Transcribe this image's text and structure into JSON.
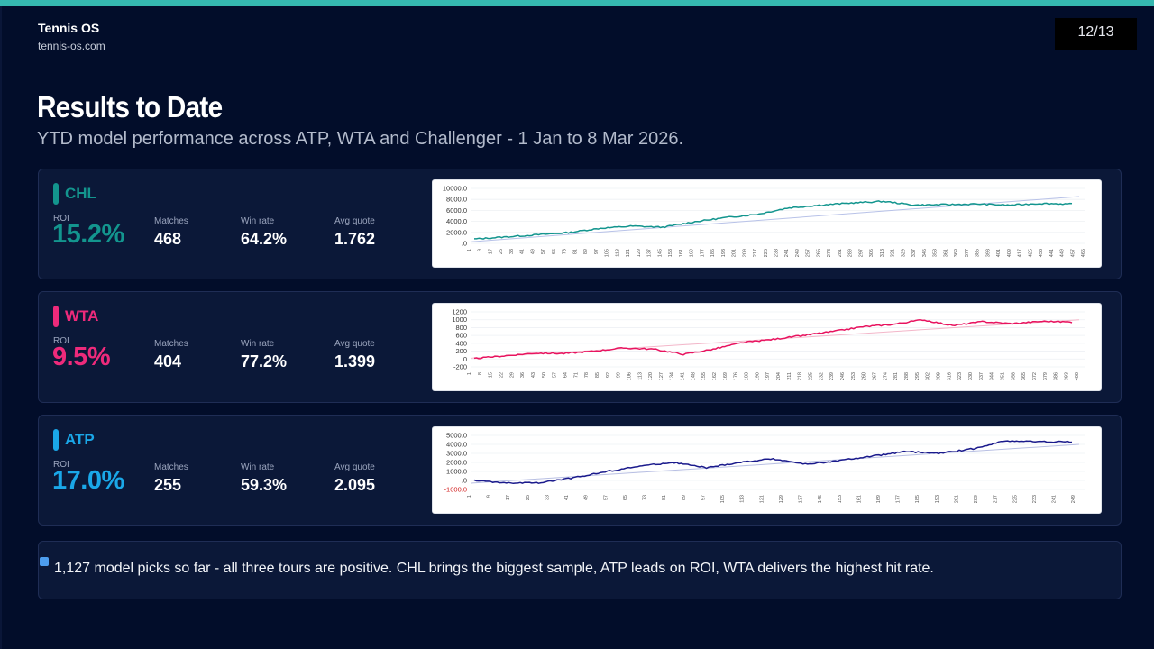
{
  "brand": {
    "name": "Tennis OS",
    "url": "tennis-os.com"
  },
  "page_indicator": "12/13",
  "title": "Results to Date",
  "subtitle": "YTD model performance across ATP, WTA and Challenger - 1 Jan to 8 Mar 2026.",
  "labels": {
    "roi": "ROI",
    "matches": "Matches",
    "win_rate": "Win rate",
    "avg_quote": "Avg quote"
  },
  "tours": [
    {
      "name": "CHL",
      "color": "#13958e",
      "roi": "15.2%",
      "matches": "468",
      "win_rate": "64.2%",
      "avg_quote": "1.762"
    },
    {
      "name": "WTA",
      "color": "#ee2a7b",
      "roi": "9.5%",
      "matches": "404",
      "win_rate": "77.2%",
      "avg_quote": "1.399"
    },
    {
      "name": "ATP",
      "color": "#1aa7e8",
      "roi": "17.0%",
      "matches": "255",
      "win_rate": "59.3%",
      "avg_quote": "2.095"
    }
  ],
  "note": "1,127 model picks so far - all three tours are positive. CHL brings the biggest sample, ATP leads on ROI, WTA delivers the highest hit rate.",
  "chart_data": [
    {
      "type": "line",
      "title": "",
      "series": [
        {
          "values": [
            600,
            1000,
            1400,
            1800,
            2600,
            3000,
            2800,
            3800,
            4600,
            5200,
            6400,
            6900,
            7300,
            7600,
            6900,
            7000,
            7100,
            6900,
            7200,
            7100
          ]
        }
      ],
      "trendline": [
        100,
        8500
      ],
      "ylim": [
        -200,
        10000
      ],
      "yticks": [
        ".0",
        "2000.0",
        "4000.0",
        "6000.0",
        "8000.0",
        "10000.0"
      ],
      "xlim": [
        1,
        465
      ],
      "xticks": [
        "1",
        "9",
        "17",
        "25",
        "33",
        "41",
        "49",
        "57",
        "65",
        "73",
        "81",
        "89",
        "97",
        "105",
        "113",
        "121",
        "129",
        "137",
        "145",
        "153",
        "161",
        "169",
        "177",
        "185",
        "193",
        "201",
        "209",
        "217",
        "225",
        "233",
        "241",
        "249",
        "257",
        "265",
        "273",
        "281",
        "289",
        "297",
        "305",
        "313",
        "321",
        "329",
        "337",
        "345",
        "353",
        "361",
        "369",
        "377",
        "385",
        "393",
        "401",
        "409",
        "417",
        "425",
        "433",
        "441",
        "449",
        "457",
        "465"
      ],
      "color": "#13958e",
      "trend_color": "#b8c2e8"
    },
    {
      "type": "line",
      "title": "",
      "series": [
        {
          "values": [
            10,
            80,
            150,
            140,
            200,
            280,
            250,
            120,
            250,
            420,
            500,
            600,
            700,
            820,
            880,
            1000,
            850,
            950,
            900,
            960,
            940
          ]
        }
      ],
      "trendline": [
        20,
        1000
      ],
      "ylim": [
        -200,
        1200
      ],
      "yticks": [
        "-200",
        "0",
        "200",
        "400",
        "600",
        "800",
        "1000",
        "1200"
      ],
      "xlim": [
        1,
        404
      ],
      "xticks": [
        "1",
        "8",
        "15",
        "22",
        "29",
        "36",
        "43",
        "50",
        "57",
        "64",
        "71",
        "78",
        "85",
        "92",
        "99",
        "106",
        "113",
        "120",
        "127",
        "134",
        "141",
        "148",
        "155",
        "162",
        "169",
        "176",
        "183",
        "190",
        "197",
        "204",
        "211",
        "218",
        "225",
        "232",
        "239",
        "246",
        "253",
        "260",
        "267",
        "274",
        "281",
        "288",
        "295",
        "302",
        "309",
        "316",
        "323",
        "330",
        "337",
        "344",
        "351",
        "358",
        "365",
        "372",
        "379",
        "386",
        "393",
        "400"
      ],
      "color": "#e8135f",
      "trend_color": "#f3b6c9"
    },
    {
      "type": "line",
      "title": "",
      "series": [
        {
          "values": [
            0,
            -300,
            -250,
            300,
            1000,
            1600,
            2000,
            1400,
            2000,
            2400,
            1800,
            2200,
            2700,
            3200,
            3000,
            3500,
            4400,
            4300,
            4300
          ]
        }
      ],
      "trendline": [
        -300,
        4000
      ],
      "ylim": [
        -1000,
        5000
      ],
      "yticks": [
        "-1000.0",
        ".0",
        "1000.0",
        "2000.0",
        "3000.0",
        "4000.0",
        "5000.0"
      ],
      "xlim": [
        1,
        253
      ],
      "xticks": [
        "1",
        "9",
        "17",
        "25",
        "33",
        "41",
        "49",
        "57",
        "65",
        "73",
        "81",
        "89",
        "97",
        "105",
        "113",
        "121",
        "129",
        "137",
        "145",
        "153",
        "161",
        "169",
        "177",
        "185",
        "193",
        "201",
        "209",
        "217",
        "225",
        "233",
        "241",
        "249"
      ],
      "color": "#1a1a8c",
      "trend_color": "#b8bfe3"
    }
  ]
}
